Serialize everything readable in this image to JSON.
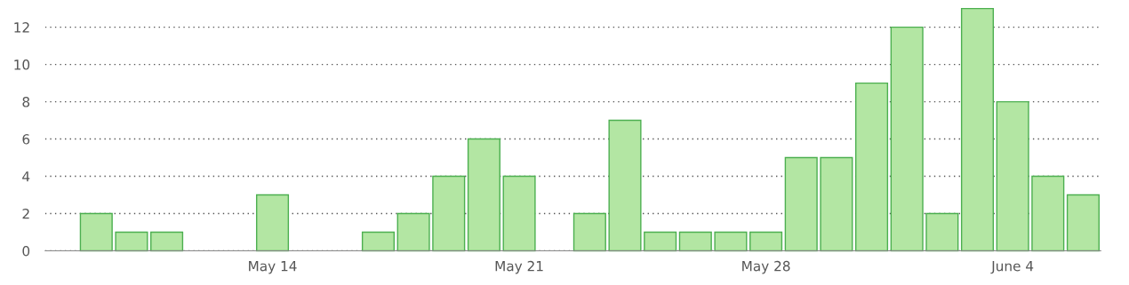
{
  "chart_data": {
    "type": "bar",
    "categories": [
      null,
      null,
      null,
      null,
      null,
      "May 14",
      null,
      null,
      null,
      null,
      null,
      null,
      "May 21",
      null,
      null,
      null,
      null,
      null,
      null,
      "May 28",
      null,
      null,
      null,
      null,
      null,
      null,
      "June 4",
      null,
      null
    ],
    "values": [
      2,
      1,
      1,
      0,
      0,
      3,
      0,
      0,
      1,
      2,
      4,
      6,
      4,
      0,
      2,
      7,
      1,
      1,
      1,
      1,
      5,
      5,
      9,
      12,
      2,
      13,
      8,
      4,
      3
    ],
    "color": "#b3e6a3",
    "ylim": [
      0,
      13
    ],
    "yticks": [
      0,
      2,
      4,
      6,
      8,
      10,
      12
    ],
    "grid": "y"
  }
}
